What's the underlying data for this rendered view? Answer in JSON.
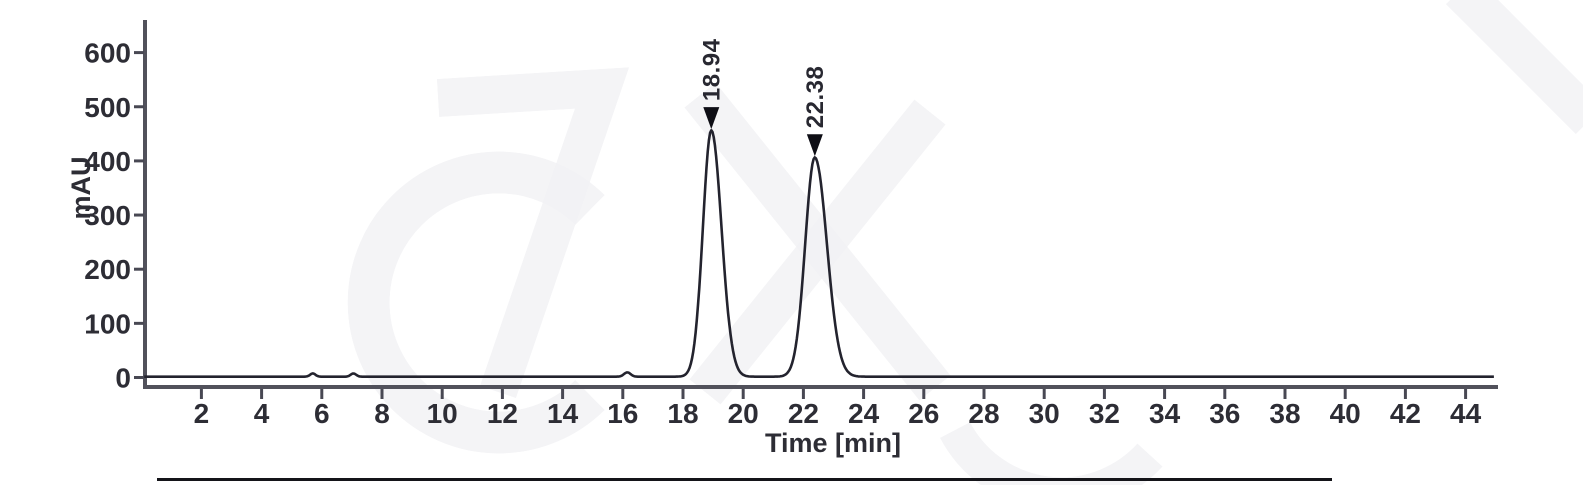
{
  "chart_data": {
    "type": "line",
    "title": "",
    "xlabel": "Time [min]",
    "ylabel": "mAU",
    "xlim": [
      0,
      45.1
    ],
    "ylim": [
      0,
      660
    ],
    "grid": false,
    "x_ticks": [
      2,
      4,
      6,
      8,
      10,
      12,
      14,
      16,
      18,
      20,
      22,
      24,
      26,
      28,
      30,
      32,
      34,
      36,
      38,
      40,
      42,
      44
    ],
    "y_ticks": [
      0,
      100,
      200,
      300,
      400,
      500,
      600
    ],
    "baseline_mau": 1.5,
    "peaks": [
      {
        "label": "18.94",
        "retention_time_min": 18.94,
        "height_mau": 455,
        "sigma_left_min": 0.28,
        "sigma_right_min": 0.34,
        "marker": "down-arrow"
      },
      {
        "label": "22.38",
        "retention_time_min": 22.38,
        "height_mau": 405,
        "sigma_left_min": 0.32,
        "sigma_right_min": 0.4,
        "marker": "down-arrow"
      }
    ],
    "minor_features": [
      {
        "t_min": 5.7,
        "height_mau": 6,
        "sigma_min": 0.09
      },
      {
        "t_min": 7.05,
        "height_mau": 6,
        "sigma_min": 0.09
      },
      {
        "t_min": 16.15,
        "height_mau": 8,
        "sigma_min": 0.11
      }
    ],
    "legend": null
  },
  "colors": {
    "background": "#ffffff",
    "trace": "#262630",
    "axis": "#52525c",
    "tick": "#4a4a54",
    "label": "#2f2f37",
    "bottom_rule": "#17171c"
  },
  "decor": {
    "bottom_rule_present": true,
    "watermark_present": true
  }
}
